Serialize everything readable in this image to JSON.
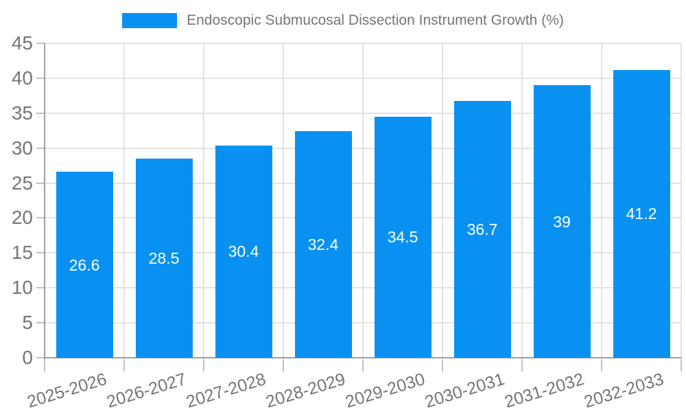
{
  "legend": {
    "label": "Endoscopic Submucosal Dissection Instrument Growth (%)"
  },
  "chart_data": {
    "type": "bar",
    "title": "Endoscopic Submucosal Dissection Instrument Growth (%)",
    "categories": [
      "2025-2026",
      "2026-2027",
      "2027-2028",
      "2028-2029",
      "2029-2030",
      "2030-2031",
      "2031-2032",
      "2032-2033"
    ],
    "values": [
      26.6,
      28.5,
      30.4,
      32.4,
      34.5,
      36.7,
      39,
      41.2
    ],
    "value_labels": [
      "26.6",
      "28.5",
      "30.4",
      "32.4",
      "34.5",
      "36.7",
      "39",
      "41.2"
    ],
    "xlabel": "",
    "ylabel": "",
    "ylim": [
      0,
      45
    ],
    "ytick_step": 5,
    "ytick_labels": [
      "0",
      "5",
      "10",
      "15",
      "20",
      "25",
      "30",
      "35",
      "40",
      "45"
    ],
    "grid": true,
    "legend_position": "top-center",
    "colors": {
      "bar": "#0991f2",
      "value_label": "#ffffff",
      "tick_text": "#757575",
      "legend_text": "#757575",
      "gridline": "#e3e3e3",
      "axis": "#9e9e9e",
      "tick_mark": "#c2c2c2",
      "background": "#ffffff"
    }
  }
}
